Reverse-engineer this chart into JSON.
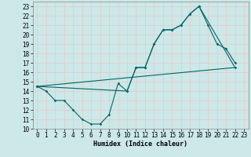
{
  "xlabel": "Humidex (Indice chaleur)",
  "xlim": [
    -0.5,
    23.5
  ],
  "ylim": [
    10,
    23.5
  ],
  "xticks": [
    0,
    1,
    2,
    3,
    4,
    5,
    6,
    7,
    8,
    9,
    10,
    11,
    12,
    13,
    14,
    15,
    16,
    17,
    18,
    19,
    20,
    21,
    22,
    23
  ],
  "yticks": [
    10,
    11,
    12,
    13,
    14,
    15,
    16,
    17,
    18,
    19,
    20,
    21,
    22,
    23
  ],
  "bg_color": "#cce8e8",
  "grid_color": "#e8c8c8",
  "line_color": "#006666",
  "line1_x": [
    0,
    1,
    2,
    3,
    4,
    5,
    6,
    7,
    8,
    9,
    10,
    11,
    12,
    13,
    14,
    15,
    16,
    17,
    18,
    19,
    20,
    21,
    22
  ],
  "line1_y": [
    14.5,
    14.0,
    13.0,
    13.0,
    12.0,
    11.0,
    10.5,
    10.5,
    11.5,
    14.8,
    14.0,
    16.5,
    16.5,
    19.0,
    20.5,
    20.5,
    21.0,
    22.2,
    23.0,
    21.0,
    19.0,
    18.5,
    17.0
  ],
  "line2_x": [
    0,
    10,
    11,
    12,
    13,
    14,
    15,
    16,
    17,
    18,
    22
  ],
  "line2_y": [
    14.5,
    14.0,
    16.5,
    16.5,
    19.0,
    20.5,
    20.5,
    21.0,
    22.2,
    23.0,
    16.5
  ],
  "line3_x": [
    0,
    22
  ],
  "line3_y": [
    14.5,
    16.5
  ]
}
